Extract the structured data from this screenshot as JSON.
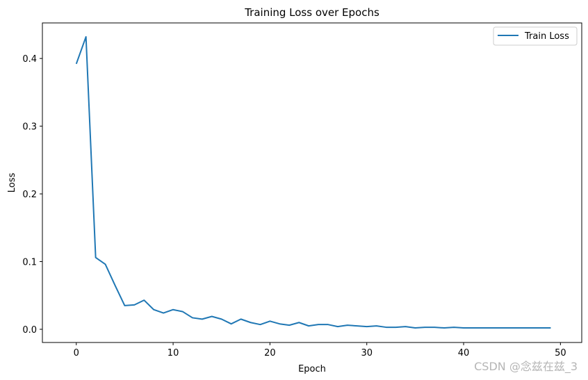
{
  "chart_data": {
    "type": "line",
    "title": "Training Loss over Epochs",
    "xlabel": "Epoch",
    "ylabel": "Loss",
    "xlim": [
      -3.5,
      52.2
    ],
    "ylim": [
      -0.0195,
      0.4525
    ],
    "xticks": [
      0,
      10,
      20,
      30,
      40,
      50
    ],
    "yticks": [
      0.0,
      0.1,
      0.2,
      0.3,
      0.4
    ],
    "xtick_labels": [
      "0",
      "10",
      "20",
      "30",
      "40",
      "50"
    ],
    "ytick_labels": [
      "0.0",
      "0.1",
      "0.2",
      "0.3",
      "0.4"
    ],
    "grid": false,
    "legend_position": "top-right",
    "series": [
      {
        "name": "Train Loss",
        "color": "#1f77b4",
        "x": [
          0,
          1,
          2,
          3,
          4,
          5,
          6,
          7,
          8,
          9,
          10,
          11,
          12,
          13,
          14,
          15,
          16,
          17,
          18,
          19,
          20,
          21,
          22,
          23,
          24,
          25,
          26,
          27,
          28,
          29,
          30,
          31,
          32,
          33,
          34,
          35,
          36,
          37,
          38,
          39,
          40,
          41,
          42,
          43,
          44,
          45,
          46,
          47,
          48,
          49
        ],
        "values": [
          0.392,
          0.432,
          0.106,
          0.096,
          0.065,
          0.035,
          0.036,
          0.043,
          0.029,
          0.024,
          0.029,
          0.026,
          0.017,
          0.015,
          0.019,
          0.015,
          0.008,
          0.015,
          0.01,
          0.007,
          0.012,
          0.008,
          0.006,
          0.01,
          0.005,
          0.007,
          0.007,
          0.004,
          0.006,
          0.005,
          0.004,
          0.005,
          0.003,
          0.003,
          0.004,
          0.002,
          0.003,
          0.003,
          0.002,
          0.003,
          0.002,
          0.002,
          0.002,
          0.002,
          0.002,
          0.002,
          0.002,
          0.002,
          0.002,
          0.002
        ]
      }
    ]
  },
  "watermark": "CSDN @念兹在兹_3"
}
